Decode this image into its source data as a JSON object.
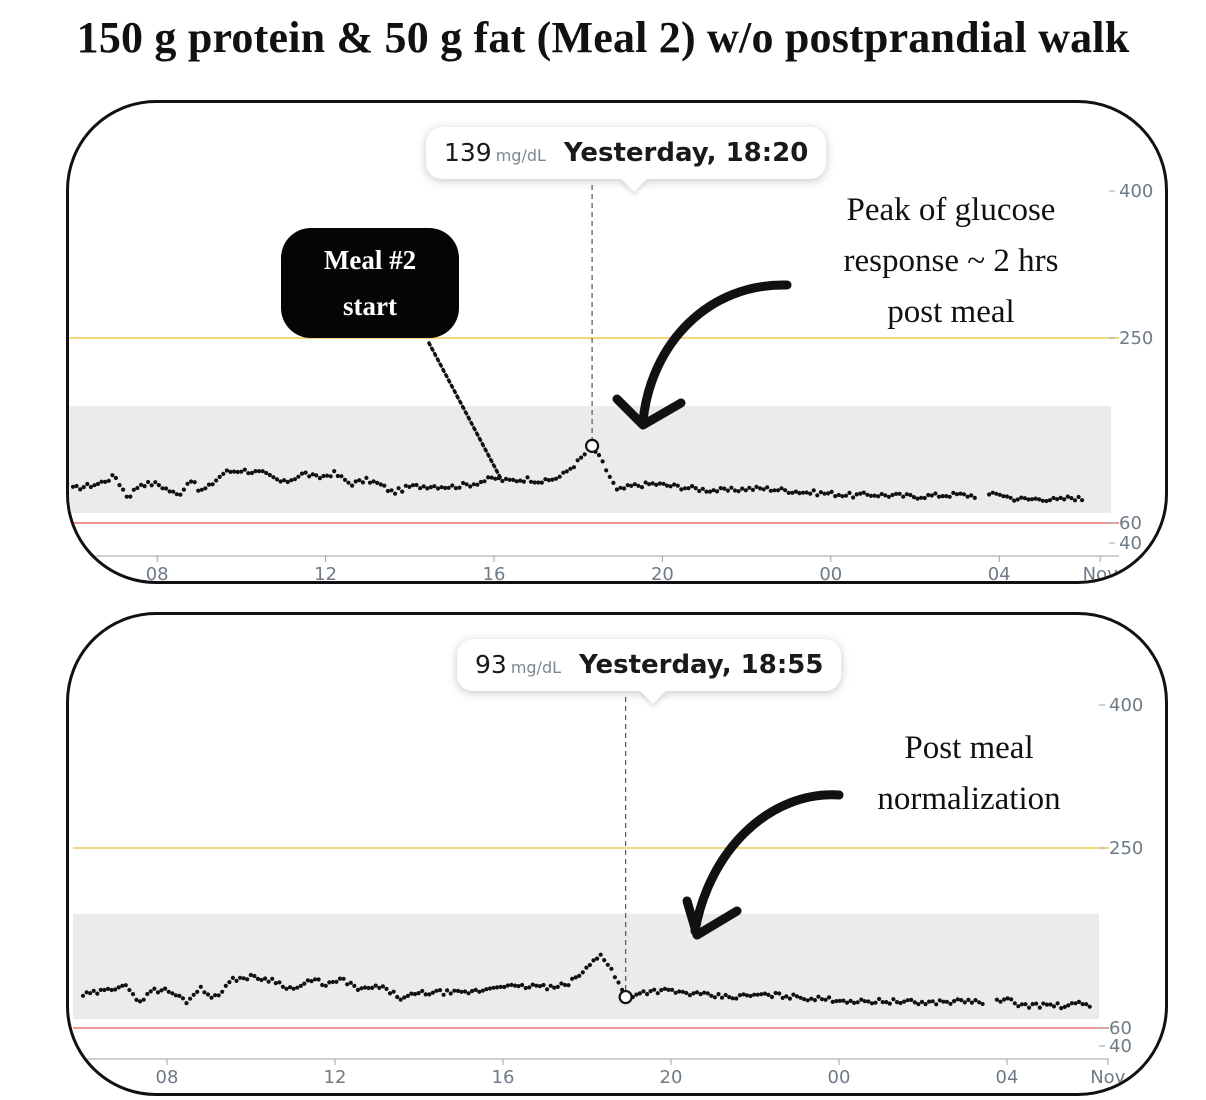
{
  "title": "150 g protein & 50 g fat (Meal 2) w/o postprandial walk",
  "chart_data": [
    {
      "type": "scatter",
      "name": "top-panel",
      "x_ticks": [
        "08",
        "12",
        "16",
        "20",
        "00",
        "04",
        "Nov"
      ],
      "y_ticks": [
        "400",
        "250",
        "60",
        "40"
      ],
      "target_range": [
        70,
        180
      ],
      "high_line": 250,
      "low_line": 60,
      "tooltip": {
        "value": "139",
        "unit": "mg/dL",
        "time": "Yesterday, 18:20"
      },
      "selected_point": {
        "time": 18.33,
        "value": 139
      },
      "annotations": {
        "meal_label_lines": [
          "Meal #2",
          "start"
        ],
        "peak_lines": [
          "Peak of glucose",
          "response ~ 2 hrs",
          "post meal"
        ]
      },
      "grid": false
    },
    {
      "type": "scatter",
      "name": "bottom-panel",
      "x_ticks": [
        "08",
        "12",
        "16",
        "20",
        "00",
        "04",
        "Nov"
      ],
      "y_ticks": [
        "400",
        "250",
        "60",
        "40"
      ],
      "target_range": [
        70,
        180
      ],
      "high_line": 250,
      "low_line": 60,
      "tooltip": {
        "value": "93",
        "unit": "mg/dL",
        "time": "Yesterday, 18:55"
      },
      "selected_point": {
        "time": 18.92,
        "value": 93
      },
      "annotations": {
        "note_lines": [
          "Post meal",
          "normalization"
        ]
      },
      "grid": false
    }
  ],
  "glucose_series": {
    "time": [
      6.0,
      6.6,
      7.0,
      7.3,
      7.6,
      8.0,
      8.5,
      8.8,
      9.0,
      9.2,
      9.6,
      10.0,
      10.5,
      11.0,
      11.5,
      11.8,
      12.2,
      12.6,
      13.0,
      13.3,
      13.6,
      14.0,
      14.5,
      15.0,
      15.5,
      16.0,
      16.3,
      16.8,
      17.2,
      17.6,
      18.0,
      18.33,
      18.6,
      18.92,
      19.3,
      19.8,
      20.2,
      20.6,
      21.0,
      21.5,
      22.0,
      22.5,
      23.0,
      23.5,
      24.0,
      24.5,
      25.0,
      25.5,
      26.0,
      26.5,
      27.0,
      27.6,
      28.0,
      28.3,
      28.7,
      29.0,
      29.4,
      29.7,
      30.0
    ],
    "value": [
      95,
      100,
      108,
      86,
      100,
      100,
      88,
      105,
      92,
      96,
      112,
      114,
      111,
      101,
      111,
      106,
      111,
      100,
      104,
      99,
      91,
      97,
      98,
      97,
      100,
      106,
      103,
      105,
      102,
      108,
      123,
      139,
      120,
      93,
      98,
      100,
      98,
      96,
      94,
      93,
      95,
      95,
      93,
      91,
      90,
      88,
      89,
      88,
      87,
      88,
      89,
      87,
      90,
      85,
      84,
      85,
      83,
      86,
      84
    ]
  }
}
